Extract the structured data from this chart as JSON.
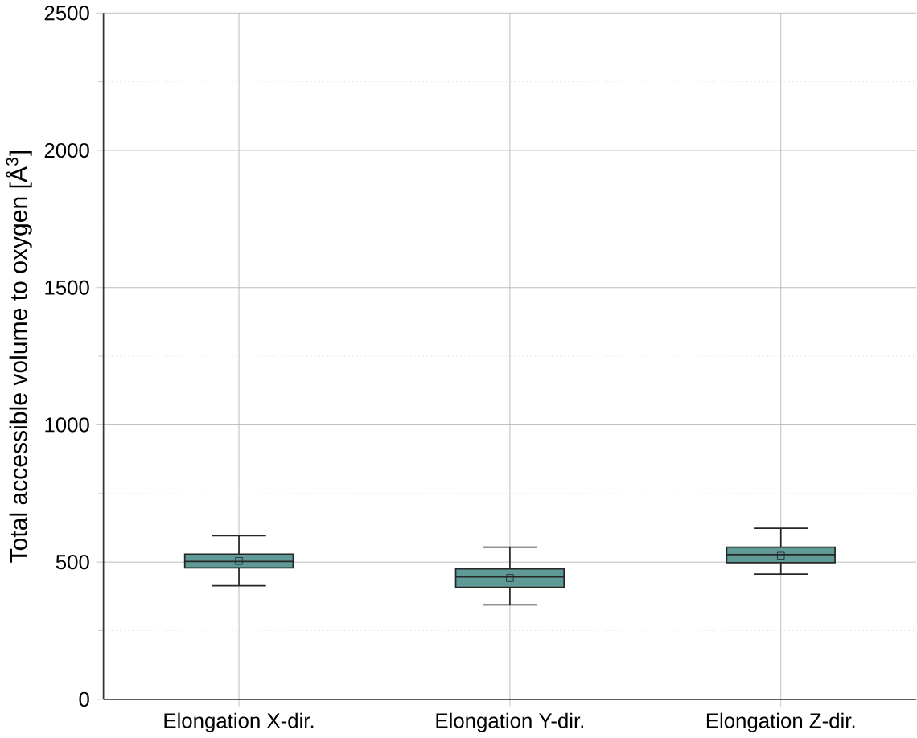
{
  "chart_data": {
    "type": "box",
    "ylabel": "Total accessible volume to oxygen [Å$^{3}$]",
    "categories": [
      "Elongation X-dir.",
      "Elongation Y-dir.",
      "Elongation Z-dir."
    ],
    "color": "#5f9a96",
    "boxes": [
      {
        "low": 414,
        "q1": 479,
        "median": 502,
        "q3": 529,
        "high": 596,
        "mean": 504
      },
      {
        "low": 344,
        "q1": 408,
        "median": 446,
        "q3": 475,
        "high": 554,
        "mean": 442
      },
      {
        "low": 456,
        "q1": 498,
        "median": 527,
        "q3": 554,
        "high": 623,
        "mean": 523
      }
    ],
    "ylim": [
      0,
      2500
    ],
    "yticks": [
      0,
      500,
      1000,
      1500,
      2000,
      2500
    ],
    "grid": true,
    "marker": "square"
  }
}
